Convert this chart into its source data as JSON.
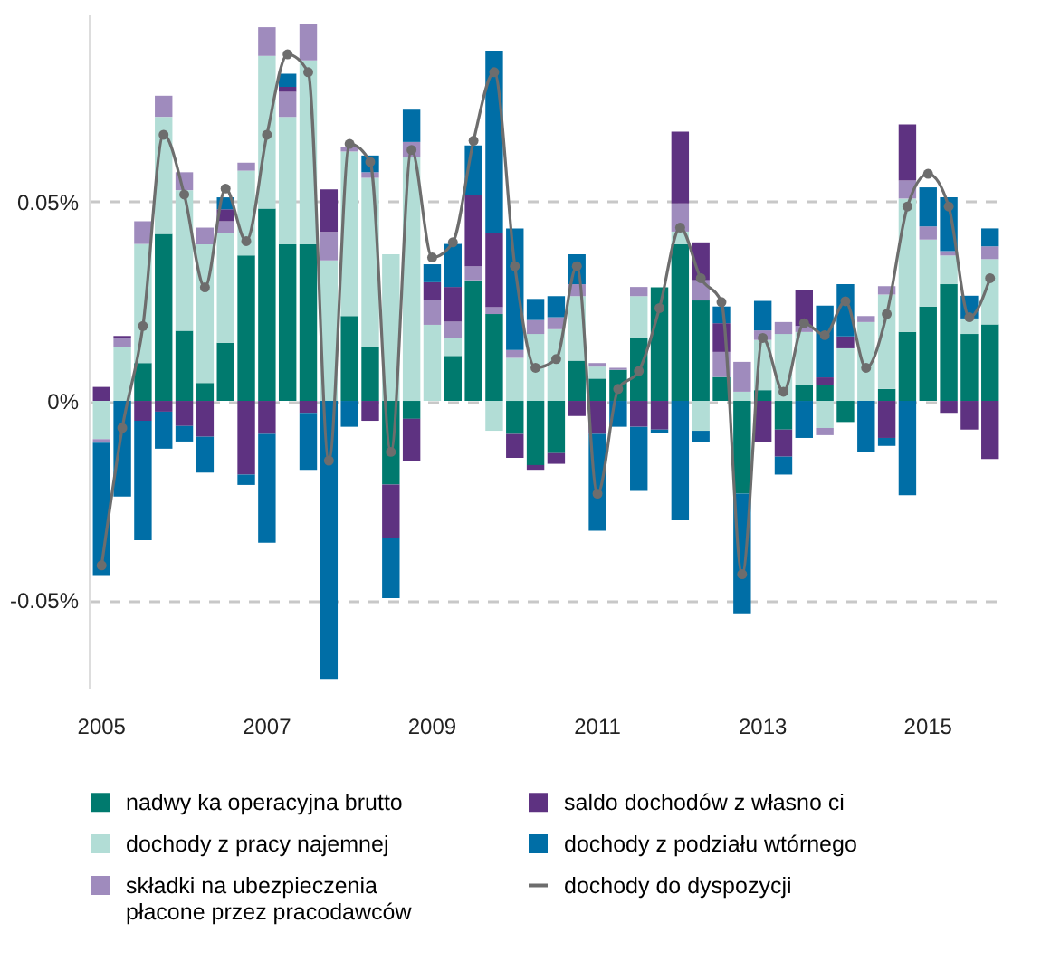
{
  "chart_data": {
    "type": "bar",
    "stacked": true,
    "categories": [
      "2005",
      null,
      null,
      null,
      null,
      null,
      null,
      null,
      "2007",
      null,
      null,
      null,
      null,
      null,
      null,
      null,
      "2009",
      null,
      null,
      null,
      null,
      null,
      null,
      null,
      "2011",
      null,
      null,
      null,
      null,
      null,
      null,
      null,
      "2013",
      null,
      null,
      null,
      null,
      null,
      null,
      null,
      "2015",
      null,
      null,
      null
    ],
    "ylim": [
      -0.072,
      0.097
    ],
    "yticks": [
      {
        "value": -0.05,
        "label": "-0.05%"
      },
      {
        "value": 0,
        "label": "0%"
      },
      {
        "value": 0.05,
        "label": "0.05%"
      }
    ],
    "grid": "y",
    "legend": "bottom",
    "marker": "circle",
    "series": [
      {
        "name": "nadwy ka operacyjna brutto",
        "color": "#007a6e",
        "values": [
          0,
          0,
          0.0095,
          0.0419,
          0.0176,
          0.0045,
          0.0146,
          0.0365,
          0.0483,
          0.0393,
          0.0393,
          0,
          0.0213,
          0.0135,
          -0.021,
          -0.0045,
          0,
          0.0113,
          0.0303,
          0.0218,
          -0.0083,
          -0.0161,
          -0.0131,
          0.0101,
          0.0056,
          0.0078,
          0.0158,
          0.0285,
          0.0393,
          0.0252,
          0.006,
          -0.0233,
          0.0027,
          -0.0072,
          0.0041,
          0.0041,
          -0.0053,
          0,
          0.003,
          0.0173,
          0.0237,
          0.0293,
          0.0168,
          0.0192
        ]
      },
      {
        "name": "dochody z pracy najemnej",
        "color": "#b2ddd6",
        "values": [
          -0.0096,
          0.0135,
          0.0299,
          0.0294,
          0.0353,
          0.0348,
          0.0275,
          0.0213,
          0.0383,
          0.032,
          0.0462,
          0.0353,
          0.0413,
          0.0425,
          0.0368,
          0.0611,
          0.0191,
          0.0045,
          0,
          -0.0075,
          0.0108,
          0.0168,
          0.018,
          0.0162,
          0.003,
          null,
          0.0105,
          0,
          0.0032,
          -0.0075,
          0,
          0.0023,
          0.0126,
          0.0168,
          0.0132,
          -0.0068,
          0.0132,
          0.0198,
          0.0237,
          0.0335,
          0.0168,
          0.0072,
          0.0039,
          0.0164
        ]
      },
      {
        "name": "składki na ubezpieczenia płacone przez pracodawców",
        "color": "#9f8bbd",
        "values": [
          -0.0009,
          0.0023,
          0.0057,
          0.0053,
          0.0045,
          0.0042,
          0.003,
          0.002,
          0.0072,
          0.0063,
          0.009,
          0.0071,
          0.0012,
          0.0014,
          0,
          0.0039,
          0.0062,
          0.0041,
          0.0035,
          0.0018,
          0.002,
          0.0035,
          0.003,
          0.003,
          0.0009,
          0.0005,
          0.0023,
          0,
          0.0071,
          0.0051,
          0.0063,
          0.0075,
          0.0024,
          0.003,
          0.0015,
          -0.0018,
          0,
          0.0015,
          0.0021,
          0.0045,
          0.0033,
          0.0011,
          null,
          0.0032
        ]
      },
      {
        "name": "saldo dochodów z własno ci",
        "color": "#5e3281",
        "values": [
          0.0035,
          0.0005,
          -0.005,
          -0.0027,
          -0.0063,
          -0.009,
          0.003,
          -0.0185,
          -0.0083,
          0.0012,
          -0.003,
          0.0107,
          null,
          -0.005,
          -0.0135,
          -0.0105,
          0.0045,
          0.0087,
          0.018,
          0.0185,
          -0.006,
          -0.0012,
          -0.0027,
          -0.0038,
          -0.0083,
          0,
          -0.0065,
          -0.0072,
          0.018,
          0.0095,
          0.0072,
          0,
          -0.0102,
          -0.0068,
          0.009,
          0.0018,
          0.003,
          0,
          -0.0093,
          0.0141,
          0,
          -0.003,
          -0.0072,
          -0.0146
        ]
      },
      {
        "name": "dochody z podziału wtórnego",
        "color": "#006ea6",
        "values": [
          -0.0332,
          -0.024,
          -0.03,
          -0.0093,
          -0.0039,
          -0.009,
          0.003,
          -0.0026,
          -0.0273,
          0.0033,
          -0.0143,
          -0.0698,
          -0.0065,
          0.0042,
          -0.015,
          0.0081,
          0.0045,
          0.0108,
          0.0123,
          0.0458,
          0.0305,
          0.0053,
          0.0053,
          0.0075,
          -0.0243,
          -0.0065,
          -0.0161,
          -0.0008,
          -0.03,
          -0.0029,
          0.0042,
          -0.03,
          0.0074,
          -0.0045,
          -0.0093,
          0.018,
          0.0131,
          -0.0129,
          -0.002,
          -0.0237,
          0.0098,
          0.0135,
          0.0057,
          0.0045
        ]
      },
      {
        "name": "dochody do dyspozycji",
        "type": "line",
        "color": "#6d6d6d",
        "values": [
          -0.0413,
          -0.0068,
          0.0188,
          0.0668,
          0.0518,
          0.0285,
          0.0533,
          0.0401,
          0.0668,
          0.087,
          0.0825,
          -0.015,
          0.0645,
          0.06,
          -0.0128,
          0.063,
          0.036,
          0.0398,
          0.0653,
          0.0825,
          0.0338,
          0.0083,
          0.0105,
          0.0338,
          -0.0233,
          0.003,
          0.0075,
          0.0233,
          0.0435,
          0.0308,
          0.0248,
          -0.0435,
          0.0158,
          0.0023,
          0.0195,
          0.0165,
          0.025,
          0.0083,
          0.0218,
          0.0488,
          0.057,
          0.0488,
          0.021,
          0.0308
        ]
      }
    ]
  }
}
